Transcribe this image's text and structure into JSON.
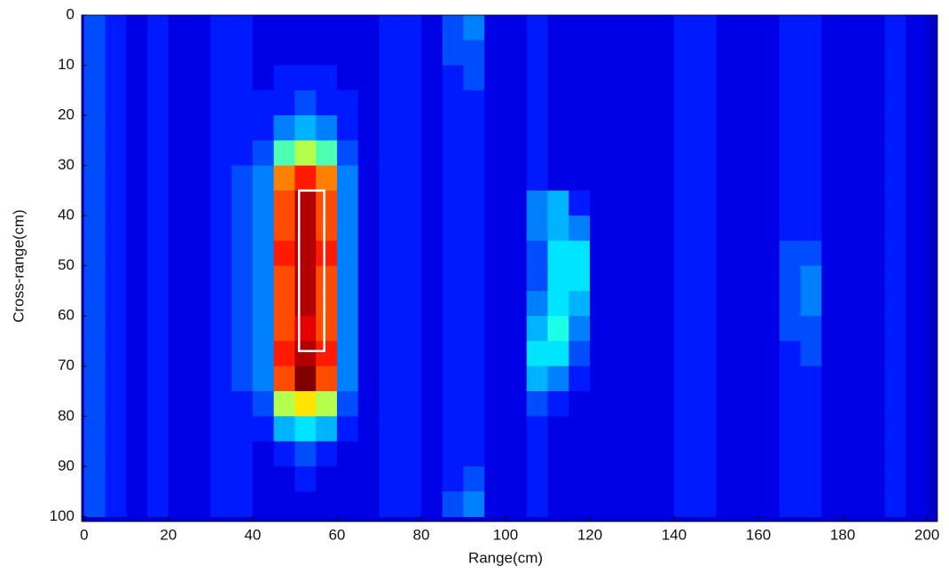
{
  "chart_data": {
    "type": "heatmap",
    "xlabel": "Range(cm)",
    "ylabel": "Cross-range(cm)",
    "xlim": [
      -0.6,
      202.5
    ],
    "ylim": [
      0,
      101
    ],
    "y_reversed": true,
    "xticks": [
      0,
      20,
      40,
      60,
      80,
      100,
      120,
      140,
      160,
      180,
      200
    ],
    "yticks": [
      0,
      10,
      20,
      30,
      40,
      50,
      60,
      70,
      80,
      90,
      100
    ],
    "colormap": "jet",
    "zlim": [
      0,
      20
    ],
    "x": [
      2.5,
      7.5,
      12.5,
      17.5,
      22.5,
      27.5,
      32.5,
      37.5,
      42.5,
      47.5,
      52.5,
      57.5,
      62.5,
      67.5,
      72.5,
      77.5,
      82.5,
      87.5,
      92.5,
      97.5,
      102.5,
      107.5,
      112.5,
      117.5,
      122.5,
      127.5,
      132.5,
      137.5,
      142.5,
      147.5,
      152.5,
      157.5,
      162.5,
      167.5,
      172.5,
      177.5,
      182.5,
      187.5,
      192.5,
      197.5
    ],
    "y": [
      2.5,
      7.5,
      12.5,
      17.5,
      22.5,
      27.5,
      32.5,
      37.5,
      42.5,
      47.5,
      52.5,
      57.5,
      62.5,
      67.5,
      72.5,
      77.5,
      82.5,
      87.5,
      92.5,
      97.5
    ],
    "z": [
      [
        4,
        3,
        2,
        3,
        2,
        2,
        3,
        3,
        2,
        2,
        2,
        2,
        2,
        2,
        3,
        3,
        2,
        4,
        5,
        2,
        2,
        3,
        2,
        2,
        2,
        2,
        2,
        2,
        3,
        3,
        2,
        2,
        2,
        3,
        3,
        2,
        2,
        2,
        3,
        2
      ],
      [
        4,
        3,
        2,
        3,
        2,
        2,
        3,
        3,
        2,
        2,
        2,
        2,
        2,
        2,
        3,
        3,
        2,
        4,
        4,
        2,
        2,
        3,
        2,
        2,
        2,
        2,
        2,
        2,
        3,
        3,
        2,
        2,
        2,
        3,
        3,
        2,
        2,
        2,
        3,
        2
      ],
      [
        4,
        3,
        2,
        3,
        2,
        2,
        3,
        3,
        2,
        3,
        3,
        3,
        2,
        2,
        3,
        3,
        2,
        3,
        4,
        2,
        2,
        3,
        2,
        2,
        2,
        2,
        2,
        2,
        3,
        3,
        2,
        2,
        2,
        3,
        3,
        2,
        2,
        2,
        3,
        2
      ],
      [
        4,
        3,
        2,
        3,
        2,
        2,
        3,
        3,
        3,
        3,
        4,
        3,
        3,
        2,
        3,
        3,
        2,
        3,
        3,
        2,
        2,
        3,
        2,
        2,
        2,
        2,
        2,
        2,
        3,
        3,
        2,
        2,
        2,
        3,
        3,
        2,
        2,
        2,
        3,
        2
      ],
      [
        4,
        3,
        2,
        3,
        2,
        2,
        3,
        3,
        3,
        5,
        6,
        5,
        3,
        2,
        3,
        3,
        2,
        3,
        3,
        2,
        2,
        3,
        2,
        2,
        2,
        2,
        2,
        2,
        3,
        3,
        2,
        2,
        2,
        3,
        3,
        2,
        2,
        2,
        3,
        2
      ],
      [
        4,
        3,
        2,
        3,
        2,
        2,
        3,
        3,
        4,
        9,
        11,
        9,
        4,
        2,
        3,
        3,
        2,
        3,
        3,
        2,
        2,
        3,
        2,
        2,
        2,
        2,
        2,
        2,
        3,
        3,
        2,
        2,
        2,
        3,
        3,
        2,
        2,
        2,
        3,
        2
      ],
      [
        4,
        3,
        2,
        3,
        2,
        2,
        3,
        4,
        5,
        15,
        17,
        15,
        5,
        2,
        3,
        3,
        2,
        3,
        3,
        2,
        2,
        3,
        2,
        2,
        2,
        2,
        2,
        2,
        3,
        3,
        2,
        2,
        2,
        3,
        3,
        2,
        2,
        2,
        3,
        2
      ],
      [
        4,
        3,
        2,
        3,
        2,
        2,
        3,
        4,
        5,
        16,
        19,
        16,
        5,
        2,
        3,
        3,
        2,
        3,
        3,
        2,
        2,
        5,
        6,
        3,
        2,
        2,
        2,
        2,
        3,
        3,
        2,
        2,
        2,
        3,
        3,
        2,
        2,
        2,
        3,
        2
      ],
      [
        4,
        3,
        2,
        3,
        2,
        2,
        3,
        4,
        5,
        16,
        19,
        16,
        5,
        2,
        3,
        3,
        2,
        3,
        3,
        2,
        2,
        5,
        6,
        5,
        2,
        2,
        2,
        2,
        3,
        3,
        2,
        2,
        2,
        3,
        3,
        2,
        2,
        2,
        3,
        2
      ],
      [
        4,
        3,
        2,
        3,
        2,
        2,
        3,
        4,
        5,
        17,
        19,
        17,
        5,
        2,
        3,
        3,
        2,
        3,
        3,
        2,
        2,
        4,
        7,
        7,
        2,
        2,
        2,
        2,
        3,
        3,
        2,
        2,
        2,
        4,
        4,
        2,
        2,
        2,
        3,
        2
      ],
      [
        4,
        3,
        2,
        3,
        2,
        2,
        3,
        4,
        5,
        16,
        19,
        16,
        5,
        2,
        3,
        3,
        2,
        3,
        3,
        2,
        2,
        4,
        7,
        7,
        2,
        2,
        2,
        2,
        3,
        3,
        2,
        2,
        2,
        4,
        5,
        2,
        2,
        2,
        3,
        2
      ],
      [
        4,
        3,
        2,
        3,
        2,
        2,
        3,
        4,
        5,
        16,
        19,
        16,
        5,
        2,
        3,
        3,
        2,
        3,
        3,
        2,
        2,
        5,
        7,
        6,
        2,
        2,
        2,
        2,
        3,
        3,
        2,
        2,
        2,
        4,
        5,
        2,
        2,
        2,
        3,
        2
      ],
      [
        4,
        3,
        2,
        3,
        2,
        2,
        3,
        4,
        5,
        16,
        18,
        16,
        5,
        2,
        3,
        3,
        2,
        3,
        3,
        2,
        2,
        6,
        8,
        5,
        2,
        2,
        2,
        2,
        3,
        3,
        2,
        2,
        2,
        4,
        4,
        2,
        2,
        2,
        3,
        2
      ],
      [
        4,
        3,
        2,
        3,
        2,
        2,
        3,
        4,
        5,
        17,
        19,
        17,
        5,
        2,
        3,
        3,
        2,
        3,
        3,
        2,
        2,
        7,
        7,
        4,
        2,
        2,
        2,
        2,
        3,
        3,
        2,
        2,
        2,
        3,
        4,
        2,
        2,
        2,
        3,
        2
      ],
      [
        4,
        3,
        2,
        3,
        2,
        2,
        3,
        4,
        5,
        16,
        20,
        16,
        5,
        2,
        3,
        3,
        2,
        3,
        3,
        2,
        2,
        6,
        5,
        3,
        2,
        2,
        2,
        2,
        3,
        3,
        2,
        2,
        2,
        3,
        3,
        2,
        2,
        2,
        3,
        2
      ],
      [
        4,
        3,
        2,
        3,
        2,
        2,
        3,
        3,
        4,
        11,
        13,
        11,
        4,
        2,
        3,
        3,
        2,
        3,
        3,
        2,
        2,
        4,
        3,
        2,
        2,
        2,
        2,
        2,
        3,
        3,
        2,
        2,
        2,
        3,
        3,
        2,
        2,
        2,
        3,
        2
      ],
      [
        4,
        3,
        2,
        3,
        2,
        2,
        3,
        3,
        3,
        6,
        7,
        6,
        3,
        2,
        3,
        3,
        2,
        3,
        3,
        2,
        2,
        3,
        2,
        2,
        2,
        2,
        2,
        2,
        3,
        3,
        2,
        2,
        2,
        3,
        3,
        2,
        2,
        2,
        3,
        2
      ],
      [
        4,
        3,
        2,
        3,
        2,
        2,
        3,
        3,
        2,
        3,
        4,
        3,
        2,
        2,
        3,
        3,
        2,
        3,
        3,
        2,
        2,
        3,
        2,
        2,
        2,
        2,
        2,
        2,
        3,
        3,
        2,
        2,
        2,
        3,
        3,
        2,
        2,
        2,
        3,
        2
      ],
      [
        4,
        3,
        2,
        3,
        2,
        2,
        3,
        3,
        2,
        2,
        3,
        2,
        2,
        2,
        3,
        3,
        2,
        3,
        4,
        2,
        2,
        3,
        2,
        2,
        2,
        2,
        2,
        2,
        3,
        3,
        2,
        2,
        2,
        3,
        3,
        2,
        2,
        2,
        3,
        2
      ],
      [
        4,
        3,
        2,
        3,
        2,
        2,
        3,
        3,
        2,
        2,
        2,
        2,
        2,
        2,
        3,
        3,
        2,
        4,
        5,
        2,
        2,
        3,
        2,
        2,
        2,
        2,
        2,
        2,
        3,
        3,
        2,
        2,
        2,
        3,
        3,
        2,
        2,
        2,
        3,
        2
      ]
    ],
    "box": {
      "x": [
        51,
        57
      ],
      "y": [
        35,
        67
      ],
      "color": "#ffffff"
    }
  }
}
